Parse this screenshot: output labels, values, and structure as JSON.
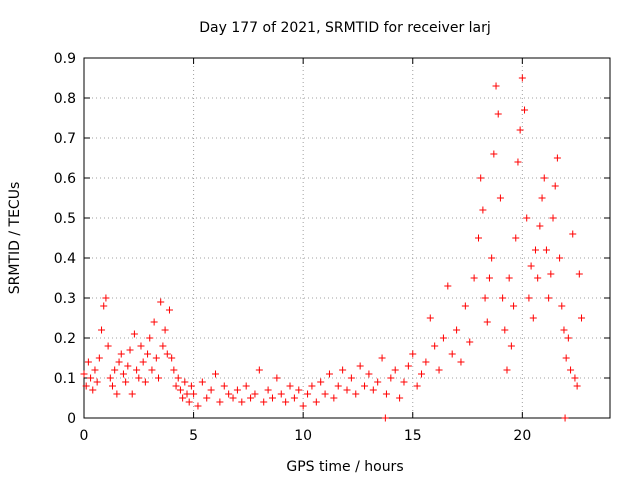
{
  "chart_data": {
    "type": "scatter",
    "title": "Day 177 of 2021, SRMTID for receiver larj",
    "xlabel": "GPS time / hours",
    "ylabel": "SRMTID / TECUs",
    "xlim": [
      0,
      24
    ],
    "ylim": [
      0,
      0.9
    ],
    "xticks": [
      0,
      5,
      10,
      15,
      20
    ],
    "xtick_labels": [
      "0",
      "5",
      "10",
      "15",
      "20"
    ],
    "yticks": [
      0,
      0.1,
      0.2,
      0.3,
      0.4,
      0.5,
      0.6,
      0.7,
      0.8,
      0.9
    ],
    "ytick_labels": [
      "0",
      "0.1",
      "0.2",
      "0.3",
      "0.4",
      "0.5",
      "0.6",
      "0.7",
      "0.8",
      "0.9"
    ],
    "grid": true,
    "legend": "none",
    "marker": "plus",
    "color": "#ff0000",
    "series": [
      {
        "name": "SRMTID",
        "points": [
          [
            0.0,
            0.11
          ],
          [
            0.1,
            0.08
          ],
          [
            0.2,
            0.14
          ],
          [
            0.3,
            0.1
          ],
          [
            0.4,
            0.07
          ],
          [
            0.5,
            0.12
          ],
          [
            0.6,
            0.09
          ],
          [
            0.7,
            0.15
          ],
          [
            0.8,
            0.22
          ],
          [
            0.9,
            0.28
          ],
          [
            1.0,
            0.3
          ],
          [
            1.1,
            0.18
          ],
          [
            1.2,
            0.1
          ],
          [
            1.3,
            0.08
          ],
          [
            1.4,
            0.12
          ],
          [
            1.5,
            0.06
          ],
          [
            1.6,
            0.14
          ],
          [
            1.7,
            0.16
          ],
          [
            1.8,
            0.11
          ],
          [
            1.9,
            0.09
          ],
          [
            2.0,
            0.13
          ],
          [
            2.1,
            0.17
          ],
          [
            2.2,
            0.06
          ],
          [
            2.3,
            0.21
          ],
          [
            2.4,
            0.12
          ],
          [
            2.5,
            0.1
          ],
          [
            2.6,
            0.18
          ],
          [
            2.7,
            0.14
          ],
          [
            2.8,
            0.09
          ],
          [
            2.9,
            0.16
          ],
          [
            3.0,
            0.2
          ],
          [
            3.1,
            0.12
          ],
          [
            3.2,
            0.24
          ],
          [
            3.3,
            0.15
          ],
          [
            3.4,
            0.1
          ],
          [
            3.5,
            0.29
          ],
          [
            3.6,
            0.18
          ],
          [
            3.7,
            0.22
          ],
          [
            3.8,
            0.16
          ],
          [
            3.9,
            0.27
          ],
          [
            4.0,
            0.15
          ],
          [
            4.1,
            0.12
          ],
          [
            4.2,
            0.08
          ],
          [
            4.3,
            0.1
          ],
          [
            4.4,
            0.07
          ],
          [
            4.5,
            0.05
          ],
          [
            4.6,
            0.09
          ],
          [
            4.7,
            0.06
          ],
          [
            4.8,
            0.04
          ],
          [
            4.9,
            0.08
          ],
          [
            5.0,
            0.06
          ],
          [
            5.2,
            0.03
          ],
          [
            5.4,
            0.09
          ],
          [
            5.6,
            0.05
          ],
          [
            5.8,
            0.07
          ],
          [
            6.0,
            0.11
          ],
          [
            6.2,
            0.04
          ],
          [
            6.4,
            0.08
          ],
          [
            6.6,
            0.06
          ],
          [
            6.8,
            0.05
          ],
          [
            7.0,
            0.07
          ],
          [
            7.2,
            0.04
          ],
          [
            7.4,
            0.08
          ],
          [
            7.6,
            0.05
          ],
          [
            7.8,
            0.06
          ],
          [
            8.0,
            0.12
          ],
          [
            8.2,
            0.04
          ],
          [
            8.4,
            0.07
          ],
          [
            8.6,
            0.05
          ],
          [
            8.8,
            0.1
          ],
          [
            9.0,
            0.06
          ],
          [
            9.2,
            0.04
          ],
          [
            9.4,
            0.08
          ],
          [
            9.6,
            0.05
          ],
          [
            9.8,
            0.07
          ],
          [
            10.0,
            0.03
          ],
          [
            10.2,
            0.06
          ],
          [
            10.4,
            0.08
          ],
          [
            10.6,
            0.04
          ],
          [
            10.8,
            0.09
          ],
          [
            11.0,
            0.06
          ],
          [
            11.2,
            0.11
          ],
          [
            11.4,
            0.05
          ],
          [
            11.6,
            0.08
          ],
          [
            11.8,
            0.12
          ],
          [
            12.0,
            0.07
          ],
          [
            12.2,
            0.1
          ],
          [
            12.4,
            0.06
          ],
          [
            12.6,
            0.13
          ],
          [
            12.8,
            0.08
          ],
          [
            13.0,
            0.11
          ],
          [
            13.2,
            0.07
          ],
          [
            13.4,
            0.09
          ],
          [
            13.6,
            0.15
          ],
          [
            13.8,
            0.06
          ],
          [
            14.0,
            0.1
          ],
          [
            14.2,
            0.12
          ],
          [
            14.4,
            0.05
          ],
          [
            14.6,
            0.09
          ],
          [
            14.8,
            0.13
          ],
          [
            15.0,
            0.16
          ],
          [
            15.2,
            0.08
          ],
          [
            15.4,
            0.11
          ],
          [
            15.6,
            0.14
          ],
          [
            15.8,
            0.25
          ],
          [
            16.0,
            0.18
          ],
          [
            16.2,
            0.12
          ],
          [
            16.4,
            0.2
          ],
          [
            16.6,
            0.33
          ],
          [
            16.8,
            0.16
          ],
          [
            17.0,
            0.22
          ],
          [
            17.2,
            0.14
          ],
          [
            17.4,
            0.28
          ],
          [
            17.6,
            0.19
          ],
          [
            17.8,
            0.35
          ],
          [
            18.0,
            0.45
          ],
          [
            18.1,
            0.6
          ],
          [
            18.2,
            0.52
          ],
          [
            18.3,
            0.3
          ],
          [
            18.4,
            0.24
          ],
          [
            18.5,
            0.35
          ],
          [
            18.6,
            0.4
          ],
          [
            18.7,
            0.66
          ],
          [
            18.8,
            0.83
          ],
          [
            18.9,
            0.76
          ],
          [
            19.0,
            0.55
          ],
          [
            19.1,
            0.3
          ],
          [
            19.2,
            0.22
          ],
          [
            19.3,
            0.12
          ],
          [
            19.4,
            0.35
          ],
          [
            19.5,
            0.18
          ],
          [
            19.6,
            0.28
          ],
          [
            19.7,
            0.45
          ],
          [
            19.8,
            0.64
          ],
          [
            19.9,
            0.72
          ],
          [
            20.0,
            0.85
          ],
          [
            20.1,
            0.77
          ],
          [
            20.2,
            0.5
          ],
          [
            20.3,
            0.3
          ],
          [
            20.4,
            0.38
          ],
          [
            20.5,
            0.25
          ],
          [
            20.6,
            0.42
          ],
          [
            20.7,
            0.35
          ],
          [
            20.8,
            0.48
          ],
          [
            20.9,
            0.55
          ],
          [
            21.0,
            0.6
          ],
          [
            21.1,
            0.42
          ],
          [
            21.2,
            0.3
          ],
          [
            21.3,
            0.36
          ],
          [
            21.4,
            0.5
          ],
          [
            21.5,
            0.58
          ],
          [
            21.6,
            0.65
          ],
          [
            21.7,
            0.4
          ],
          [
            21.8,
            0.28
          ],
          [
            21.9,
            0.22
          ],
          [
            22.0,
            0.15
          ],
          [
            22.1,
            0.2
          ],
          [
            22.2,
            0.12
          ],
          [
            22.3,
            0.46
          ],
          [
            22.4,
            0.1
          ],
          [
            22.5,
            0.08
          ],
          [
            22.6,
            0.36
          ],
          [
            22.7,
            0.25
          ],
          [
            13.75,
            0.0
          ],
          [
            21.95,
            0.0
          ]
        ]
      }
    ]
  }
}
